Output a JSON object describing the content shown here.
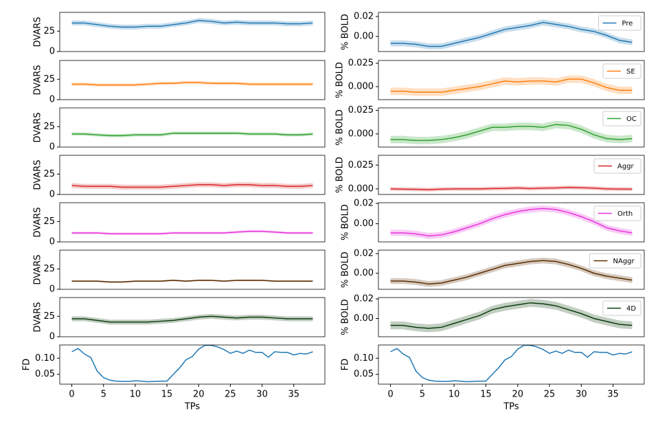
{
  "chart_data": [
    {
      "type": "line",
      "ylabel": "DVARS",
      "ylim": [
        0,
        48
      ],
      "yticks": [
        0,
        25
      ],
      "xlim": [
        -1.9,
        39.9
      ],
      "x": [
        0,
        2,
        4,
        6,
        8,
        10,
        12,
        14,
        16,
        18,
        20,
        22,
        24,
        26,
        28,
        30,
        32,
        34,
        36,
        38
      ],
      "series": [
        {
          "color": "#1f77b4",
          "values": [
            35,
            35,
            33,
            31,
            30,
            30,
            31,
            31,
            33,
            35,
            38,
            37,
            35,
            36,
            35,
            35,
            35,
            34,
            34,
            35
          ],
          "error": 3
        }
      ]
    },
    {
      "type": "line",
      "ylabel": "DVARS",
      "ylim": [
        0,
        48
      ],
      "yticks": [
        0,
        25
      ],
      "xlim": [
        -1.9,
        39.9
      ],
      "x": [
        0,
        2,
        4,
        6,
        8,
        10,
        12,
        14,
        16,
        18,
        20,
        22,
        24,
        26,
        28,
        30,
        32,
        34,
        36,
        38
      ],
      "series": [
        {
          "color": "#ff7f0e",
          "values": [
            19,
            19,
            18,
            18,
            18,
            18,
            19,
            20,
            20,
            21,
            21,
            20,
            20,
            20,
            19,
            19,
            19,
            19,
            19,
            19
          ],
          "error": 2
        }
      ]
    },
    {
      "type": "line",
      "ylabel": "DVARS",
      "ylim": [
        0,
        48
      ],
      "yticks": [
        0,
        25
      ],
      "xlim": [
        -1.9,
        39.9
      ],
      "x": [
        0,
        2,
        4,
        6,
        8,
        10,
        12,
        14,
        16,
        18,
        20,
        22,
        24,
        26,
        28,
        30,
        32,
        34,
        36,
        38
      ],
      "series": [
        {
          "color": "#2ca02c",
          "values": [
            16,
            16,
            15,
            14,
            14,
            15,
            15,
            15,
            17,
            17,
            17,
            17,
            17,
            17,
            16,
            16,
            16,
            15,
            15,
            16
          ],
          "error": 2
        }
      ]
    },
    {
      "type": "line",
      "ylabel": "DVARS",
      "ylim": [
        0,
        48
      ],
      "yticks": [
        0,
        25
      ],
      "xlim": [
        -1.9,
        39.9
      ],
      "x": [
        0,
        2,
        4,
        6,
        8,
        10,
        12,
        14,
        16,
        18,
        20,
        22,
        24,
        26,
        28,
        30,
        32,
        34,
        36,
        38
      ],
      "series": [
        {
          "color": "#d62728",
          "values": [
            11,
            10,
            10,
            10,
            9,
            9,
            9,
            9,
            10,
            11,
            12,
            12,
            11,
            12,
            12,
            11,
            11,
            10,
            10,
            11
          ],
          "error": 3
        }
      ]
    },
    {
      "type": "line",
      "ylabel": "DVARS",
      "ylim": [
        0,
        48
      ],
      "yticks": [
        0,
        25
      ],
      "xlim": [
        -1.9,
        39.9
      ],
      "x": [
        0,
        2,
        4,
        6,
        8,
        10,
        12,
        14,
        16,
        18,
        20,
        22,
        24,
        26,
        28,
        30,
        32,
        34,
        36,
        38
      ],
      "series": [
        {
          "color": "#e833dd",
          "values": [
            11,
            11,
            11,
            10,
            10,
            10,
            10,
            10,
            11,
            11,
            11,
            11,
            11,
            12,
            13,
            13,
            12,
            11,
            11,
            11
          ],
          "error": 1.5
        }
      ]
    },
    {
      "type": "line",
      "ylabel": "DVARS",
      "ylim": [
        0,
        48
      ],
      "yticks": [
        0,
        25
      ],
      "xlim": [
        -1.9,
        39.9
      ],
      "x": [
        0,
        2,
        4,
        6,
        8,
        10,
        12,
        14,
        16,
        18,
        20,
        22,
        24,
        26,
        28,
        30,
        32,
        34,
        36,
        38
      ],
      "series": [
        {
          "color": "#5a2d00",
          "values": [
            10,
            10,
            10,
            9,
            9,
            10,
            10,
            10,
            11,
            10,
            11,
            11,
            10,
            11,
            11,
            11,
            10,
            10,
            10,
            10
          ],
          "error": 1
        }
      ]
    },
    {
      "type": "line",
      "ylabel": "DVARS",
      "ylim": [
        0,
        48
      ],
      "yticks": [
        0,
        25
      ],
      "xlim": [
        -1.9,
        39.9
      ],
      "x": [
        0,
        2,
        4,
        6,
        8,
        10,
        12,
        14,
        16,
        18,
        20,
        22,
        24,
        26,
        28,
        30,
        32,
        34,
        36,
        38
      ],
      "series": [
        {
          "color": "#0b3d0b",
          "values": [
            22,
            22,
            20,
            18,
            18,
            18,
            18,
            19,
            20,
            22,
            24,
            25,
            24,
            23,
            24,
            24,
            23,
            22,
            22,
            22
          ],
          "error": 3
        }
      ]
    },
    {
      "type": "line",
      "ylabel": "FD",
      "xlabel": "TPs",
      "ylim": [
        0.0196,
        0.141
      ],
      "xlim": [
        -1.9,
        39.9
      ],
      "yticks": [
        {
          "value": 0.05,
          "label": "0.05"
        },
        {
          "value": 0.1,
          "label": "0.10"
        }
      ],
      "xticks": [
        0,
        5,
        10,
        15,
        20,
        25,
        30,
        35
      ],
      "x": [
        0,
        1,
        2,
        3,
        4,
        5,
        6,
        7,
        8,
        9,
        10,
        11,
        12,
        13,
        14,
        15,
        16,
        17,
        18,
        19,
        20,
        21,
        22,
        23,
        24,
        25,
        26,
        27,
        28,
        29,
        30,
        31,
        32,
        33,
        34,
        35,
        36,
        37,
        38
      ],
      "series": [
        {
          "color": "#1f77b4",
          "values": [
            0.12,
            0.13,
            0.113,
            0.102,
            0.06,
            0.04,
            0.032,
            0.029,
            0.028,
            0.028,
            0.03,
            0.029,
            0.027,
            0.028,
            0.029,
            0.029,
            0.05,
            0.07,
            0.095,
            0.105,
            0.128,
            0.14,
            0.14,
            0.135,
            0.127,
            0.115,
            0.122,
            0.115,
            0.125,
            0.118,
            0.118,
            0.103,
            0.12,
            0.118,
            0.118,
            0.11,
            0.115,
            0.113,
            0.12
          ]
        }
      ]
    },
    {
      "type": "line",
      "ylabel": "% BOLD",
      "ylim": [
        -0.0152,
        0.0241
      ],
      "xlim": [
        -1.9,
        39.9
      ],
      "legend": "upper right",
      "yticks": [
        {
          "value": 0,
          "label": "0.00"
        },
        {
          "value": 0.02,
          "label": "0.02"
        }
      ],
      "x": [
        0,
        2,
        4,
        6,
        8,
        10,
        12,
        14,
        16,
        18,
        20,
        22,
        24,
        26,
        28,
        30,
        32,
        34,
        36,
        38
      ],
      "series": [
        {
          "name": "Pre",
          "color": "#1f77b4",
          "values": [
            -0.007,
            -0.007,
            -0.008,
            -0.01,
            -0.01,
            -0.007,
            -0.004,
            -0.001,
            0.003,
            0.007,
            0.009,
            0.011,
            0.014,
            0.012,
            0.01,
            0.007,
            0.005,
            0.001,
            -0.004,
            -0.006
          ],
          "error": 0.003
        }
      ]
    },
    {
      "type": "line",
      "ylabel": "% BOLD",
      "ylim": [
        -0.014,
        0.028
      ],
      "xlim": [
        -1.9,
        39.9
      ],
      "legend": "upper right",
      "yticks": [
        {
          "value": 0,
          "label": "0.000"
        },
        {
          "value": 0.025,
          "label": "0.025"
        }
      ],
      "x": [
        0,
        2,
        4,
        6,
        8,
        10,
        12,
        14,
        16,
        18,
        20,
        22,
        24,
        26,
        28,
        30,
        32,
        34,
        36,
        38
      ],
      "series": [
        {
          "name": "SE",
          "color": "#ff7f0e",
          "values": [
            -0.005,
            -0.005,
            -0.006,
            -0.006,
            -0.006,
            -0.004,
            -0.002,
            0,
            0.003,
            0.006,
            0.005,
            0.006,
            0.006,
            0.005,
            0.008,
            0.008,
            0.004,
            -0.001,
            -0.004,
            -0.004
          ],
          "error": 0.004
        }
      ]
    },
    {
      "type": "line",
      "ylabel": "% BOLD",
      "ylim": [
        -0.014,
        0.0277
      ],
      "xlim": [
        -1.9,
        39.9
      ],
      "legend": "upper right",
      "yticks": [
        {
          "value": 0,
          "label": "0.000"
        },
        {
          "value": 0.025,
          "label": "0.025"
        }
      ],
      "x": [
        0,
        2,
        4,
        6,
        8,
        10,
        12,
        14,
        16,
        18,
        20,
        22,
        24,
        26,
        28,
        30,
        32,
        34,
        36,
        38
      ],
      "series": [
        {
          "name": "OC",
          "color": "#2ca02c",
          "values": [
            -0.006,
            -0.006,
            -0.007,
            -0.007,
            -0.006,
            -0.004,
            -0.001,
            0.003,
            0.007,
            0.007,
            0.008,
            0.008,
            0.007,
            0.01,
            0.009,
            0.005,
            -0.001,
            -0.005,
            -0.006,
            -0.005
          ],
          "error": 0.004
        }
      ]
    },
    {
      "type": "line",
      "ylabel": "% BOLD",
      "ylim": [
        -0.0059,
        0.0353
      ],
      "xlim": [
        -1.9,
        39.9
      ],
      "legend": "upper right",
      "yticks": [
        {
          "value": 0,
          "label": "0.000"
        },
        {
          "value": 0.025,
          "label": "0.025"
        }
      ],
      "x": [
        0,
        2,
        4,
        6,
        8,
        10,
        12,
        14,
        16,
        18,
        20,
        22,
        24,
        26,
        28,
        30,
        32,
        34,
        36,
        38
      ],
      "series": [
        {
          "name": "Aggr",
          "color": "#d62728",
          "values": [
            0,
            -0.0003,
            -0.0005,
            -0.0008,
            -0.0003,
            0,
            0,
            0,
            0.0003,
            0.0005,
            0.001,
            0.0003,
            0.0008,
            0.001,
            0.0015,
            0.0012,
            0.0008,
            0,
            -0.0002,
            -0.0003
          ],
          "error": 0.002
        }
      ]
    },
    {
      "type": "line",
      "ylabel": "% BOLD",
      "ylim": [
        -0.0179,
        0.0207
      ],
      "xlim": [
        -1.9,
        39.9
      ],
      "legend": "upper right",
      "yticks": [
        {
          "value": 0,
          "label": "0.00"
        },
        {
          "value": 0.02,
          "label": "0.02"
        }
      ],
      "x": [
        0,
        2,
        4,
        6,
        8,
        10,
        12,
        14,
        16,
        18,
        20,
        22,
        24,
        26,
        28,
        30,
        32,
        34,
        36,
        38
      ],
      "series": [
        {
          "name": "Orth",
          "color": "#e833dd",
          "values": [
            -0.009,
            -0.009,
            -0.01,
            -0.012,
            -0.011,
            -0.008,
            -0.004,
            0,
            0.005,
            0.009,
            0.012,
            0.014,
            0.015,
            0.014,
            0.011,
            0.007,
            0.002,
            -0.004,
            -0.007,
            -0.009
          ],
          "error": 0.003
        }
      ]
    },
    {
      "type": "line",
      "ylabel": "% BOLD",
      "ylim": [
        -0.0164,
        0.0236
      ],
      "xlim": [
        -1.9,
        39.9
      ],
      "legend": "upper right",
      "yticks": [
        {
          "value": 0,
          "label": "0.00"
        },
        {
          "value": 0.02,
          "label": "0.02"
        }
      ],
      "x": [
        0,
        2,
        4,
        6,
        8,
        10,
        12,
        14,
        16,
        18,
        20,
        22,
        24,
        26,
        28,
        30,
        32,
        34,
        36,
        38
      ],
      "series": [
        {
          "name": "NAggr",
          "color": "#5a2d00",
          "values": [
            -0.008,
            -0.008,
            -0.009,
            -0.011,
            -0.01,
            -0.007,
            -0.004,
            0,
            0.004,
            0.008,
            0.01,
            0.012,
            0.013,
            0.012,
            0.009,
            0.005,
            0,
            -0.003,
            -0.005,
            -0.007
          ],
          "error": 0.003
        }
      ]
    },
    {
      "type": "line",
      "ylabel": "% BOLD",
      "ylim": [
        -0.0186,
        0.0214
      ],
      "xlim": [
        -1.9,
        39.9
      ],
      "legend": "upper right",
      "yticks": [
        {
          "value": 0,
          "label": "0.00"
        },
        {
          "value": 0.02,
          "label": "0.02"
        }
      ],
      "x": [
        0,
        2,
        4,
        6,
        8,
        10,
        12,
        14,
        16,
        18,
        20,
        22,
        24,
        26,
        28,
        30,
        32,
        34,
        36,
        38
      ],
      "series": [
        {
          "name": "4D",
          "color": "#0b3d0b",
          "values": [
            -0.007,
            -0.007,
            -0.009,
            -0.01,
            -0.009,
            -0.005,
            -0.001,
            0.003,
            0.009,
            0.012,
            0.014,
            0.016,
            0.015,
            0.013,
            0.009,
            0.005,
            0,
            -0.003,
            -0.006,
            -0.007
          ],
          "error": 0.004
        }
      ]
    },
    {
      "type": "line",
      "ylabel": "FD",
      "xlabel": "TPs",
      "ylim": [
        0.0196,
        0.141
      ],
      "xlim": [
        -1.9,
        39.9
      ],
      "yticks": [
        {
          "value": 0.05,
          "label": "0.05"
        },
        {
          "value": 0.1,
          "label": "0.10"
        }
      ],
      "xticks": [
        0,
        5,
        10,
        15,
        20,
        25,
        30,
        35
      ],
      "x": [
        0,
        1,
        2,
        3,
        4,
        5,
        6,
        7,
        8,
        9,
        10,
        11,
        12,
        13,
        14,
        15,
        16,
        17,
        18,
        19,
        20,
        21,
        22,
        23,
        24,
        25,
        26,
        27,
        28,
        29,
        30,
        31,
        32,
        33,
        34,
        35,
        36,
        37,
        38
      ],
      "series": [
        {
          "color": "#1f77b4",
          "values": [
            0.12,
            0.13,
            0.113,
            0.102,
            0.06,
            0.04,
            0.032,
            0.029,
            0.028,
            0.028,
            0.03,
            0.029,
            0.027,
            0.028,
            0.029,
            0.029,
            0.05,
            0.07,
            0.095,
            0.105,
            0.128,
            0.14,
            0.14,
            0.135,
            0.127,
            0.115,
            0.122,
            0.115,
            0.125,
            0.118,
            0.118,
            0.103,
            0.12,
            0.118,
            0.118,
            0.11,
            0.115,
            0.113,
            0.12
          ]
        }
      ]
    }
  ]
}
